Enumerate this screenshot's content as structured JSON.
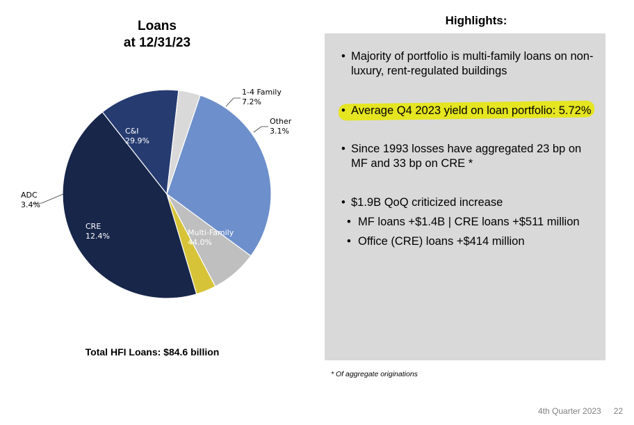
{
  "chart_data": {
    "type": "pie",
    "title": "Loans\nat 12/31/23",
    "slices": [
      {
        "label": "Multi-Family",
        "value": 44.0,
        "pct_label": "44.0%",
        "color": "#18264a"
      },
      {
        "label": "CRE",
        "value": 12.4,
        "pct_label": "12.4%",
        "color": "#263b70"
      },
      {
        "label": "ADC",
        "value": 3.4,
        "pct_label": "3.4%",
        "color": "#d9d9d9"
      },
      {
        "label": "C&I",
        "value": 29.9,
        "pct_label": "29.9%",
        "color": "#6d8fcb"
      },
      {
        "label": "1-4 Family",
        "value": 7.2,
        "pct_label": "7.2%",
        "color": "#bfbfbf"
      },
      {
        "label": "Other",
        "value": 3.1,
        "pct_label": "3.1%",
        "color": "#d6c337"
      }
    ]
  },
  "chart_title": {
    "line1": "Loans",
    "line2": "at 12/31/23"
  },
  "total_label": "Total HFI Loans: $84.6 billion",
  "highlights": {
    "title": "Highlights:",
    "items": [
      "Majority of portfolio is multi-family loans on non-luxury, rent-regulated buildings",
      "Average Q4 2023 yield on loan portfolio: 5.72%",
      "Since 1993 losses have aggregated 23 bp on MF and 33 bp on CRE *",
      "$1.9B QoQ criticized increase"
    ],
    "subitems": [
      "MF loans +$1.4B | CRE loans +$511 million",
      "Office (CRE) loans +$414 million"
    ],
    "highlight_color": "#e6e600",
    "box_color": "#d9d9d9"
  },
  "footnote": "* Of aggregate originations",
  "footer": {
    "label": "4th Quarter 2023",
    "page": "22"
  }
}
